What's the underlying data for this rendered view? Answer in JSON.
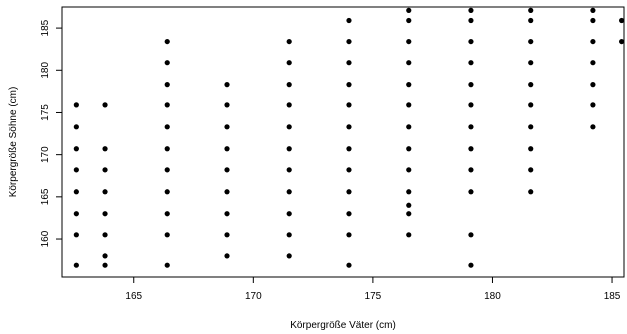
{
  "chart_data": {
    "type": "scatter",
    "title": "",
    "xlabel": "Körpergröße Väter (cm)",
    "ylabel": "Körpergröße Söhne (cm)",
    "xlim": [
      162.0,
      185.5
    ],
    "ylim": [
      155.5,
      187.5
    ],
    "xticks": [
      165,
      170,
      175,
      180,
      185
    ],
    "yticks": [
      160,
      165,
      170,
      175,
      180,
      185
    ],
    "grid": false,
    "marker_color": "#000000",
    "points": [
      [
        162.6,
        175.9
      ],
      [
        162.6,
        173.3
      ],
      [
        162.6,
        170.7
      ],
      [
        162.6,
        168.2
      ],
      [
        162.6,
        165.6
      ],
      [
        162.6,
        163.0
      ],
      [
        162.6,
        160.5
      ],
      [
        162.6,
        156.9
      ],
      [
        163.8,
        175.9
      ],
      [
        163.8,
        170.7
      ],
      [
        163.8,
        168.2
      ],
      [
        163.8,
        165.6
      ],
      [
        163.8,
        163.0
      ],
      [
        163.8,
        160.5
      ],
      [
        163.8,
        158.0
      ],
      [
        163.8,
        156.9
      ],
      [
        166.4,
        183.4
      ],
      [
        166.4,
        180.9
      ],
      [
        166.4,
        178.3
      ],
      [
        166.4,
        175.9
      ],
      [
        166.4,
        173.3
      ],
      [
        166.4,
        170.7
      ],
      [
        166.4,
        168.2
      ],
      [
        166.4,
        165.6
      ],
      [
        166.4,
        163.0
      ],
      [
        166.4,
        160.5
      ],
      [
        166.4,
        156.9
      ],
      [
        168.9,
        178.3
      ],
      [
        168.9,
        175.9
      ],
      [
        168.9,
        173.3
      ],
      [
        168.9,
        170.7
      ],
      [
        168.9,
        168.2
      ],
      [
        168.9,
        165.6
      ],
      [
        168.9,
        163.0
      ],
      [
        168.9,
        160.5
      ],
      [
        168.9,
        158.0
      ],
      [
        171.5,
        183.4
      ],
      [
        171.5,
        180.9
      ],
      [
        171.5,
        178.3
      ],
      [
        171.5,
        175.9
      ],
      [
        171.5,
        173.3
      ],
      [
        171.5,
        170.7
      ],
      [
        171.5,
        168.2
      ],
      [
        171.5,
        165.6
      ],
      [
        171.5,
        163.0
      ],
      [
        171.5,
        160.5
      ],
      [
        171.5,
        158.0
      ],
      [
        174.0,
        185.9
      ],
      [
        174.0,
        183.4
      ],
      [
        174.0,
        180.9
      ],
      [
        174.0,
        178.3
      ],
      [
        174.0,
        175.9
      ],
      [
        174.0,
        173.3
      ],
      [
        174.0,
        170.7
      ],
      [
        174.0,
        168.2
      ],
      [
        174.0,
        165.6
      ],
      [
        174.0,
        163.0
      ],
      [
        174.0,
        160.5
      ],
      [
        174.0,
        156.9
      ],
      [
        176.5,
        187.1
      ],
      [
        176.5,
        185.9
      ],
      [
        176.5,
        183.4
      ],
      [
        176.5,
        180.9
      ],
      [
        176.5,
        178.3
      ],
      [
        176.5,
        175.9
      ],
      [
        176.5,
        173.3
      ],
      [
        176.5,
        170.7
      ],
      [
        176.5,
        168.2
      ],
      [
        176.5,
        165.6
      ],
      [
        176.5,
        164.0
      ],
      [
        176.5,
        163.0
      ],
      [
        176.5,
        160.5
      ],
      [
        179.1,
        187.1
      ],
      [
        179.1,
        185.9
      ],
      [
        179.1,
        183.4
      ],
      [
        179.1,
        180.9
      ],
      [
        179.1,
        178.3
      ],
      [
        179.1,
        175.9
      ],
      [
        179.1,
        173.3
      ],
      [
        179.1,
        170.7
      ],
      [
        179.1,
        168.2
      ],
      [
        179.1,
        165.6
      ],
      [
        179.1,
        160.5
      ],
      [
        179.1,
        156.9
      ],
      [
        181.6,
        187.1
      ],
      [
        181.6,
        185.9
      ],
      [
        181.6,
        183.4
      ],
      [
        181.6,
        180.9
      ],
      [
        181.6,
        178.3
      ],
      [
        181.6,
        175.9
      ],
      [
        181.6,
        173.3
      ],
      [
        181.6,
        170.7
      ],
      [
        181.6,
        168.2
      ],
      [
        181.6,
        165.6
      ],
      [
        184.2,
        187.1
      ],
      [
        184.2,
        185.9
      ],
      [
        184.2,
        183.4
      ],
      [
        184.2,
        180.9
      ],
      [
        184.2,
        178.3
      ],
      [
        184.2,
        175.9
      ],
      [
        184.2,
        173.3
      ],
      [
        185.4,
        185.9
      ],
      [
        185.4,
        183.4
      ]
    ]
  }
}
